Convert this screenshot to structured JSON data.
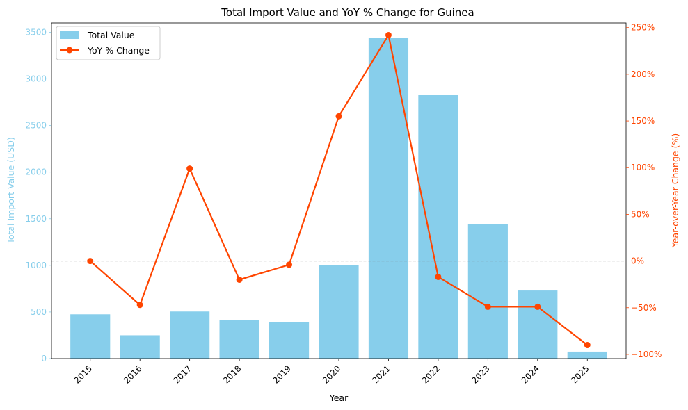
{
  "chart_data": {
    "type": "bar+line",
    "title": "Total Import Value and YoY % Change for Guinea",
    "xlabel": "Year",
    "ylabel_left": "Total Import Value (USD)",
    "ylabel_right": "Year-over-Year Change (%)",
    "categories": [
      "2015",
      "2016",
      "2017",
      "2018",
      "2019",
      "2020",
      "2021",
      "2022",
      "2023",
      "2024",
      "2025"
    ],
    "bar_series": {
      "name": "Total Value",
      "color": "#87CEEB",
      "values": [
        475,
        250,
        505,
        410,
        395,
        1005,
        3440,
        2830,
        1440,
        730,
        75
      ]
    },
    "line_series": {
      "name": "YoY % Change",
      "color": "#FF4500",
      "values": [
        0,
        -47,
        99,
        -20,
        -4,
        155,
        242,
        -17,
        -49,
        -49,
        -90
      ]
    },
    "left_axis": {
      "ylim": [
        0,
        3600
      ],
      "ticks": [
        0,
        500,
        1000,
        1500,
        2000,
        2500,
        3000,
        3500
      ],
      "tick_labels": [
        "0",
        "500",
        "1000",
        "1500",
        "2000",
        "2500",
        "3000",
        "3500"
      ],
      "color": "#87CEEB"
    },
    "right_axis": {
      "ylim": [
        -104.5,
        255
      ],
      "ticks": [
        -100,
        -50,
        0,
        50,
        100,
        150,
        200,
        250
      ],
      "tick_labels": [
        "−100%",
        "−50%",
        "0%",
        "50%",
        "100%",
        "150%",
        "200%",
        "250%"
      ],
      "color": "#FF4500"
    },
    "reference_line": {
      "value": 0,
      "style": "dashed",
      "color": "#808080"
    },
    "legend": {
      "position": "top-left",
      "entries": [
        "Total Value",
        "YoY % Change"
      ]
    },
    "grid": false
  }
}
